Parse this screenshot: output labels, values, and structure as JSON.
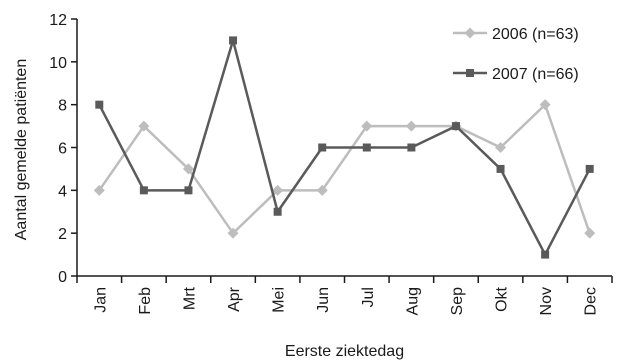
{
  "chart_data": {
    "type": "line",
    "xlabel": "Eerste ziektedag",
    "ylabel": "Aantal gemelde patiënten",
    "categories": [
      "Jan",
      "Feb",
      "Mrt",
      "Apr",
      "Mei",
      "Jun",
      "Jul",
      "Aug",
      "Sep",
      "Okt",
      "Nov",
      "Dec"
    ],
    "ylim": [
      0,
      12
    ],
    "yticks": [
      "0",
      "2",
      "4",
      "6",
      "8",
      "10",
      "12"
    ],
    "grid": false,
    "legend_position": "top-right",
    "series": [
      {
        "name": "2006 (n=63)",
        "marker": "diamond",
        "color": "#bdbdbd",
        "values": [
          4,
          7,
          5,
          2,
          4,
          4,
          7,
          7,
          7,
          6,
          8,
          2
        ]
      },
      {
        "name": "2007 (n=66)",
        "marker": "square",
        "color": "#5a5a5a",
        "values": [
          8,
          4,
          4,
          11,
          3,
          6,
          6,
          6,
          7,
          5,
          1,
          5
        ]
      }
    ]
  }
}
